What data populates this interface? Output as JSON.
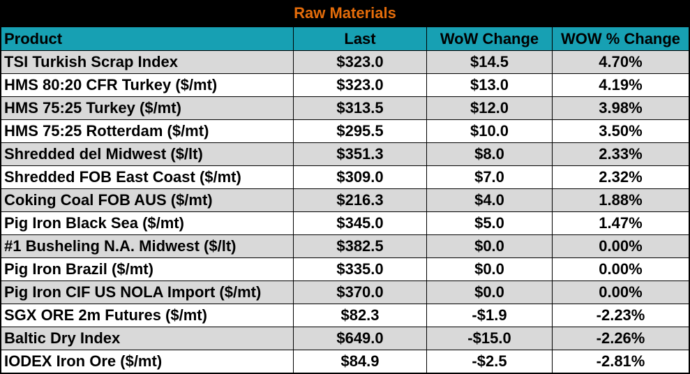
{
  "title": "Raw Materials",
  "columns": [
    "Product",
    "Last",
    "WoW Change",
    "WOW % Change"
  ],
  "rows": [
    [
      "TSI Turkish Scrap Index",
      "$323.0",
      "$14.5",
      "4.70%"
    ],
    [
      "HMS 80:20 CFR Turkey ($/mt)",
      "$323.0",
      "$13.0",
      "4.19%"
    ],
    [
      "HMS 75:25 Turkey ($/mt)",
      "$313.5",
      "$12.0",
      "3.98%"
    ],
    [
      "HMS 75:25 Rotterdam ($/mt)",
      "$295.5",
      "$10.0",
      "3.50%"
    ],
    [
      "Shredded del  Midwest ($/lt)",
      "$351.3",
      "$8.0",
      "2.33%"
    ],
    [
      "Shredded FOB East Coast ($/mt)",
      "$309.0",
      "$7.0",
      "2.32%"
    ],
    [
      "Coking Coal FOB AUS ($/mt)",
      "$216.3",
      "$4.0",
      "1.88%"
    ],
    [
      "Pig Iron Black Sea ($/mt)",
      "$345.0",
      "$5.0",
      "1.47%"
    ],
    [
      "#1 Busheling N.A. Midwest ($/lt)",
      "$382.5",
      "$0.0",
      "0.00%"
    ],
    [
      "Pig Iron Brazil ($/mt)",
      "$335.0",
      "$0.0",
      "0.00%"
    ],
    [
      "Pig Iron CIF US NOLA Import ($/mt)",
      "$370.0",
      "$0.0",
      "0.00%"
    ],
    [
      "SGX ORE 2m Futures ($/mt)",
      "$82.3",
      "-$1.9",
      "-2.23%"
    ],
    [
      "Baltic Dry Index",
      "$649.0",
      "-$15.0",
      "-2.26%"
    ],
    [
      "IODEX  Iron Ore ($/mt)",
      "$84.9",
      "-$2.5",
      "-2.81%"
    ]
  ],
  "colors": {
    "title": "#e46c0a",
    "header_bg": "#17a0b3",
    "row_shaded": "#d9d9d9",
    "row_plain": "#ffffff"
  }
}
